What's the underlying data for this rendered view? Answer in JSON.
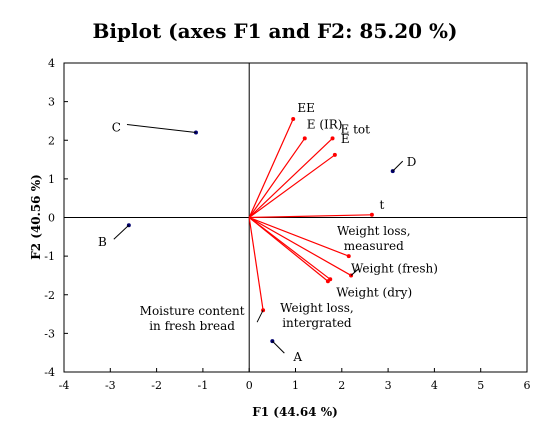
{
  "chart_data": {
    "type": "scatter",
    "title": "Biplot (axes F1 and F2: 85.20 %)",
    "xlabel": "F1 (44.64 %)",
    "ylabel": "F2 (40.56 %)",
    "xlim": [
      -4,
      6
    ],
    "ylim": [
      -4,
      4
    ],
    "x_ticks": [
      "-4",
      "-3",
      "-2",
      "-1",
      "0",
      "1",
      "2",
      "3",
      "4",
      "5",
      "6"
    ],
    "y_ticks": [
      "-4",
      "-3",
      "-2",
      "-1",
      "0",
      "1",
      "2",
      "3",
      "4"
    ],
    "grid": false,
    "colors": {
      "variables": "#ff0000",
      "observations": "#00006e",
      "frame": "#000000"
    },
    "variables": [
      {
        "label": "EE",
        "x": 0.95,
        "y": 2.55
      },
      {
        "label": "E (IR)",
        "x": 1.2,
        "y": 2.05
      },
      {
        "label": "E tot",
        "x": 1.8,
        "y": 2.05
      },
      {
        "label": "E",
        "x": 1.85,
        "y": 1.62
      },
      {
        "label": "t",
        "x": 2.65,
        "y": 0.07
      },
      {
        "label": "Weight loss, measured",
        "lines": [
          "Weight loss,",
          "measured"
        ],
        "x": 2.15,
        "y": -1.0
      },
      {
        "label": "Weight (fresh)",
        "x": 2.2,
        "y": -1.5
      },
      {
        "label": "Weight (dry)",
        "x": 1.75,
        "y": -1.6
      },
      {
        "label": "Weight loss, intergrated",
        "lines": [
          "Weight loss,",
          "intergrated"
        ],
        "x": 1.7,
        "y": -1.65
      },
      {
        "label": "Moisture content in fresh bread",
        "lines": [
          "Moisture content",
          "in fresh bread"
        ],
        "x": 0.3,
        "y": -2.4
      }
    ],
    "observations": [
      {
        "label": "A",
        "x": 0.5,
        "y": -3.2
      },
      {
        "label": "B",
        "x": -2.6,
        "y": -0.2
      },
      {
        "label": "C",
        "x": -1.15,
        "y": 2.2
      },
      {
        "label": "D",
        "x": 3.1,
        "y": 1.2
      }
    ]
  }
}
